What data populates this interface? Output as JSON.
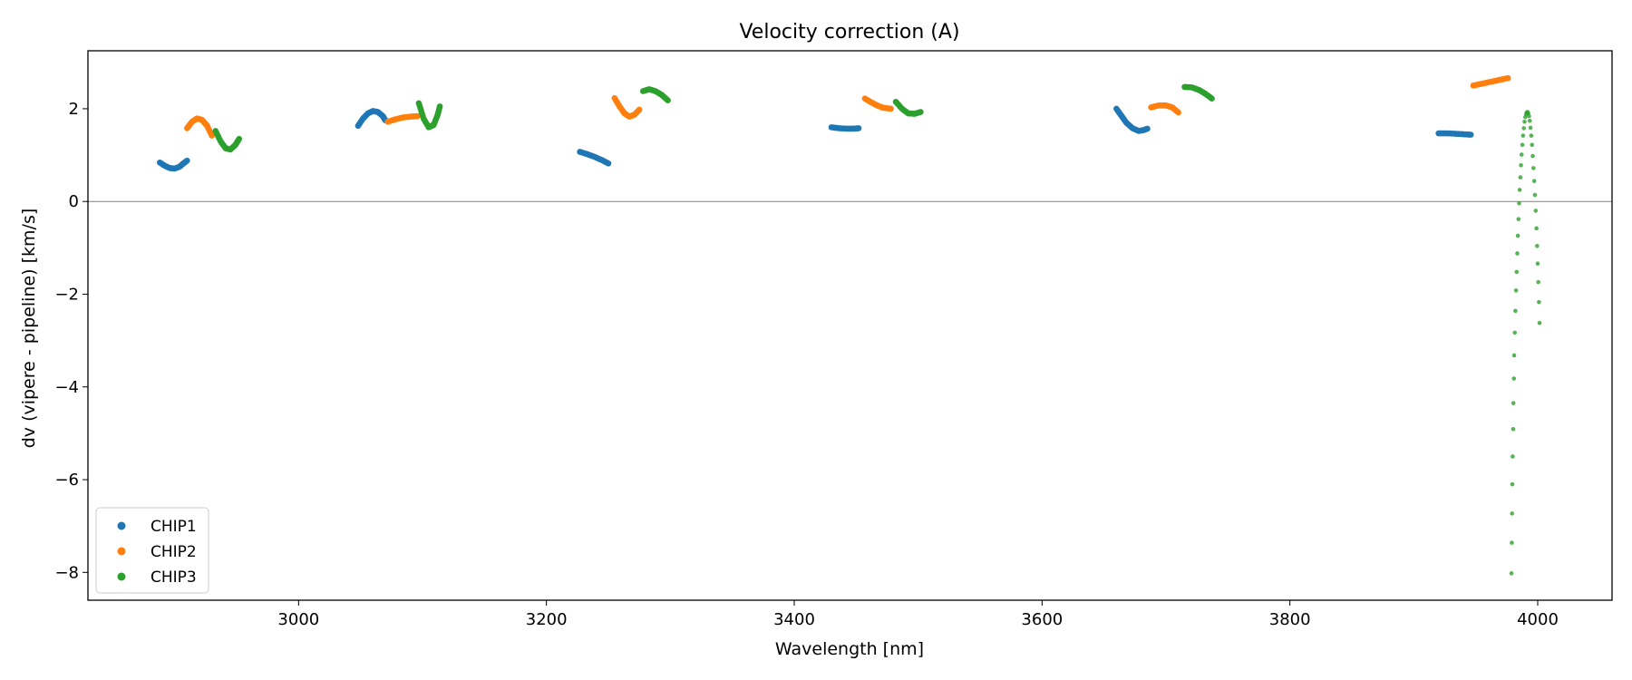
{
  "chart_data": {
    "type": "scatter",
    "title": "Velocity correction (A)",
    "xlabel": "Wavelength [nm]",
    "ylabel": "dv (vipere - pipeline) [km/s]",
    "xlim": [
      2830,
      4060
    ],
    "ylim": [
      -8.6,
      3.25
    ],
    "xticks": [
      3000,
      3200,
      3400,
      3600,
      3800,
      4000
    ],
    "yticks": [
      -8,
      -6,
      -4,
      -2,
      0,
      2
    ],
    "xtick_labels": [
      "3000",
      "3200",
      "3400",
      "3600",
      "3800",
      "4000"
    ],
    "ytick_labels": [
      "−8",
      "−6",
      "−4",
      "−2",
      "0",
      "2"
    ],
    "zero_line": true,
    "grid": false,
    "legend_position": "lower-left",
    "series": [
      {
        "name": "CHIP1",
        "color": "#1f77b4",
        "segments": [
          [
            [
              2888,
              0.84
            ],
            [
              2892,
              0.77
            ],
            [
              2896,
              0.72
            ],
            [
              2900,
              0.71
            ],
            [
              2904,
              0.75
            ],
            [
              2907,
              0.82
            ],
            [
              2910,
              0.88
            ]
          ],
          [
            [
              3048,
              1.63
            ],
            [
              3052,
              1.79
            ],
            [
              3056,
              1.9
            ],
            [
              3060,
              1.95
            ],
            [
              3064,
              1.93
            ],
            [
              3068,
              1.84
            ],
            [
              3070,
              1.75
            ]
          ],
          [
            [
              3227,
              1.07
            ],
            [
              3233,
              1.02
            ],
            [
              3239,
              0.96
            ],
            [
              3245,
              0.89
            ],
            [
              3250,
              0.82
            ]
          ],
          [
            [
              3430,
              1.6
            ],
            [
              3436,
              1.58
            ],
            [
              3442,
              1.57
            ],
            [
              3448,
              1.57
            ],
            [
              3452,
              1.58
            ]
          ],
          [
            [
              3660,
              2.0
            ],
            [
              3664,
              1.85
            ],
            [
              3668,
              1.7
            ],
            [
              3673,
              1.58
            ],
            [
              3678,
              1.52
            ],
            [
              3682,
              1.54
            ],
            [
              3685,
              1.57
            ]
          ],
          [
            [
              3920,
              1.47
            ],
            [
              3927,
              1.47
            ],
            [
              3934,
              1.46
            ],
            [
              3940,
              1.45
            ],
            [
              3946,
              1.44
            ]
          ]
        ]
      },
      {
        "name": "CHIP2",
        "color": "#ff7f0e",
        "segments": [
          [
            [
              2910,
              1.58
            ],
            [
              2914,
              1.72
            ],
            [
              2918,
              1.79
            ],
            [
              2922,
              1.76
            ],
            [
              2926,
              1.64
            ],
            [
              2930,
              1.42
            ]
          ],
          [
            [
              3072,
              1.72
            ],
            [
              3078,
              1.77
            ],
            [
              3084,
              1.81
            ],
            [
              3090,
              1.83
            ],
            [
              3096,
              1.84
            ]
          ],
          [
            [
              3255,
              2.23
            ],
            [
              3259,
              2.05
            ],
            [
              3263,
              1.9
            ],
            [
              3267,
              1.83
            ],
            [
              3271,
              1.87
            ],
            [
              3275,
              1.98
            ]
          ],
          [
            [
              3457,
              2.22
            ],
            [
              3462,
              2.14
            ],
            [
              3467,
              2.07
            ],
            [
              3472,
              2.02
            ],
            [
              3478,
              2.0
            ]
          ],
          [
            [
              3688,
              2.03
            ],
            [
              3694,
              2.07
            ],
            [
              3700,
              2.07
            ],
            [
              3705,
              2.03
            ],
            [
              3710,
              1.92
            ]
          ],
          [
            [
              3948,
              2.5
            ],
            [
              3955,
              2.54
            ],
            [
              3962,
              2.58
            ],
            [
              3969,
              2.62
            ],
            [
              3976,
              2.66
            ]
          ]
        ]
      },
      {
        "name": "CHIP3",
        "color": "#2ca02c",
        "segments": [
          [
            [
              2933,
              1.52
            ],
            [
              2937,
              1.3
            ],
            [
              2941,
              1.15
            ],
            [
              2945,
              1.12
            ],
            [
              2949,
              1.22
            ],
            [
              2952,
              1.35
            ]
          ],
          [
            [
              3097,
              2.12
            ],
            [
              3101,
              1.78
            ],
            [
              3105,
              1.6
            ],
            [
              3109,
              1.65
            ],
            [
              3112,
              1.85
            ],
            [
              3114,
              2.05
            ]
          ],
          [
            [
              3278,
              2.38
            ],
            [
              3283,
              2.42
            ],
            [
              3288,
              2.38
            ],
            [
              3293,
              2.3
            ],
            [
              3298,
              2.18
            ]
          ],
          [
            [
              3482,
              2.15
            ],
            [
              3487,
              2.0
            ],
            [
              3492,
              1.9
            ],
            [
              3497,
              1.89
            ],
            [
              3502,
              1.93
            ]
          ],
          [
            [
              3715,
              2.47
            ],
            [
              3721,
              2.46
            ],
            [
              3727,
              2.4
            ],
            [
              3732,
              2.32
            ],
            [
              3737,
              2.22
            ]
          ]
        ],
        "points": [
          [
            3978.8,
            -8.02
          ],
          [
            3979.1,
            -7.36
          ],
          [
            3979.3,
            -6.73
          ],
          [
            3979.5,
            -6.1
          ],
          [
            3979.8,
            -5.5
          ],
          [
            3980.2,
            -4.91
          ],
          [
            3980.4,
            -4.35
          ],
          [
            3980.8,
            -3.82
          ],
          [
            3981.0,
            -3.32
          ],
          [
            3981.5,
            -2.83
          ],
          [
            3982.0,
            -2.36
          ],
          [
            3982.5,
            -1.92
          ],
          [
            3983.0,
            -1.52
          ],
          [
            3983.5,
            -1.12
          ],
          [
            3984.0,
            -0.74
          ],
          [
            3984.5,
            -0.38
          ],
          [
            3985.0,
            -0.04
          ],
          [
            3985.5,
            0.25
          ],
          [
            3986.0,
            0.52
          ],
          [
            3986.5,
            0.78
          ],
          [
            3987.0,
            1.01
          ],
          [
            3987.6,
            1.22
          ],
          [
            3988.2,
            1.42
          ],
          [
            3988.8,
            1.58
          ],
          [
            3989.4,
            1.72
          ],
          [
            3990.0,
            1.82
          ],
          [
            3990.6,
            1.88
          ],
          [
            3991.2,
            1.92
          ],
          [
            3991.8,
            1.93
          ],
          [
            3992.4,
            1.9
          ],
          [
            3993.0,
            1.84
          ],
          [
            3993.6,
            1.74
          ],
          [
            3994.2,
            1.59
          ],
          [
            3994.8,
            1.42
          ],
          [
            3995.4,
            1.22
          ],
          [
            3996.0,
            0.98
          ],
          [
            3996.6,
            0.72
          ],
          [
            3997.2,
            0.44
          ],
          [
            3997.8,
            0.14
          ],
          [
            3998.4,
            -0.2
          ],
          [
            3999.0,
            -0.58
          ],
          [
            3999.5,
            -0.96
          ],
          [
            4000.0,
            -1.34
          ],
          [
            4000.5,
            -1.74
          ],
          [
            4001.0,
            -2.17
          ],
          [
            4001.5,
            -2.62
          ]
        ]
      }
    ]
  }
}
